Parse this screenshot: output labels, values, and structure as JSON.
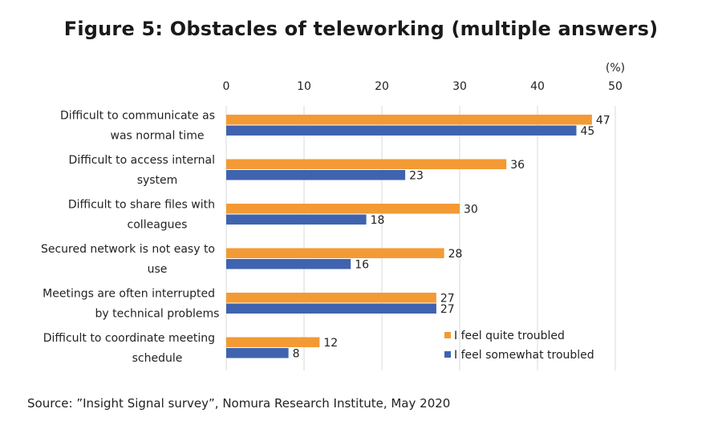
{
  "chart_data": {
    "type": "bar",
    "orientation": "horizontal",
    "title": "Figure 5: Obstacles of teleworking (multiple answers)",
    "unit_label": "(%)",
    "xlim": [
      0,
      50
    ],
    "xticks": [
      "0",
      "10",
      "20",
      "30",
      "40",
      "50"
    ],
    "grid": true,
    "legend_position": "bottom-right",
    "categories": [
      [
        "Difficult to communicate as",
        "was normal time"
      ],
      [
        "Difficult to access internal",
        "system"
      ],
      [
        "Difficult to share files with",
        "colleagues"
      ],
      [
        "Secured network is not easy to",
        "use"
      ],
      [
        "Meetings are often interrupted",
        "by technical problems"
      ],
      [
        "Difficult to coordinate meeting",
        "schedule"
      ]
    ],
    "series": [
      {
        "name": "I feel quite troubled",
        "color": "#F39A35",
        "values": [
          47,
          36,
          30,
          28,
          27,
          12
        ]
      },
      {
        "name": "I feel somewhat troubled",
        "color": "#3F63AF",
        "values": [
          45,
          23,
          18,
          16,
          27,
          8
        ]
      }
    ]
  },
  "source": "Source: ”Insight Signal survey”, Nomura Research Institute, May 2020"
}
